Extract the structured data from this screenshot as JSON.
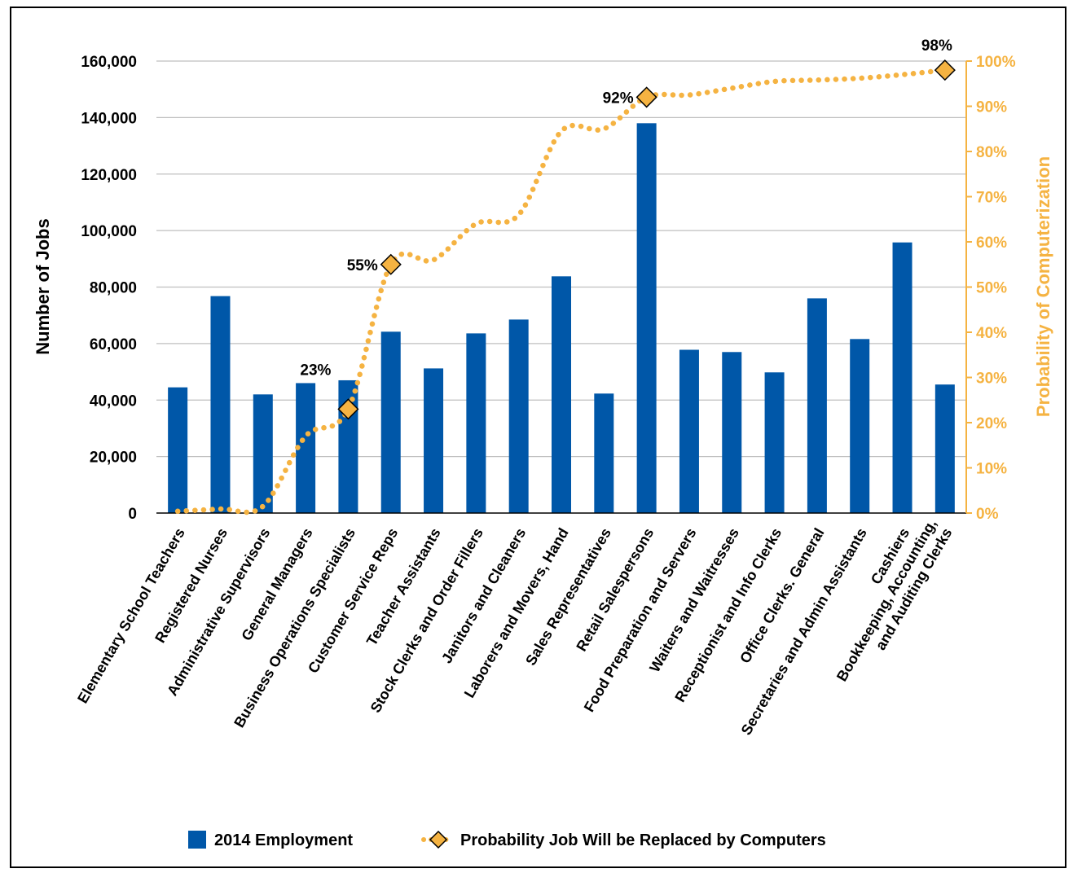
{
  "chart_data": {
    "type": "bar",
    "categories": [
      [
        "Elementary School Teachers"
      ],
      [
        "Registered Nurses"
      ],
      [
        "Administrative Supervisors"
      ],
      [
        "General Managers"
      ],
      [
        "Business Operations Specialists"
      ],
      [
        "Customer Service Reps"
      ],
      [
        "Teacher Assistants"
      ],
      [
        "Stock Clerks and Order Fillers"
      ],
      [
        "Janitors and Cleaners"
      ],
      [
        "Laborers and Movers, Hand"
      ],
      [
        "Sales Representatives"
      ],
      [
        "Retail Salespersons"
      ],
      [
        "Food Preparation and Servers"
      ],
      [
        "Waiters and Waitresses"
      ],
      [
        "Receptionist and Info Clerks"
      ],
      [
        "Office Clerks. General"
      ],
      [
        "Secretaries and Admin Assistants"
      ],
      [
        "Cashiers"
      ],
      [
        "Bookkeeping, Accounting,",
        "and Auditing Clerks"
      ]
    ],
    "series": [
      {
        "name": "2014 Employment",
        "kind": "bar",
        "axis": "left",
        "color": "#0057A8",
        "values": [
          44500,
          76800,
          42000,
          46000,
          47000,
          64200,
          51200,
          63600,
          68500,
          83800,
          42300,
          138000,
          57800,
          57000,
          49800,
          76000,
          61600,
          95800,
          45500
        ]
      },
      {
        "name": "Probability Job Will be Replaced by Computers",
        "kind": "line",
        "axis": "right",
        "color": "#F5B342",
        "values": [
          0.4,
          0.9,
          1.5,
          17,
          23,
          55,
          56,
          64,
          66,
          84.5,
          85,
          92,
          92.5,
          94,
          95.5,
          95.8,
          96.2,
          97,
          98
        ]
      }
    ],
    "annotations": [
      {
        "index": 4,
        "text": "23%"
      },
      {
        "index": 5,
        "text": "55%"
      },
      {
        "index": 11,
        "text": "92%"
      },
      {
        "index": 18,
        "text": "98%"
      }
    ],
    "y_left": {
      "label": "Number of Jobs",
      "range": [
        0,
        160000
      ],
      "ticks": [
        "0",
        "20,000",
        "40,000",
        "60,000",
        "80,000",
        "100,000",
        "120,000",
        "140,000",
        "160,000"
      ]
    },
    "y_right": {
      "label": "Probability of Computerization",
      "range": [
        0,
        100
      ],
      "ticks": [
        "0%",
        "10%",
        "20%",
        "30%",
        "40%",
        "50%",
        "60%",
        "70%",
        "80%",
        "90%",
        "100%"
      ]
    },
    "grid": true,
    "legend_position": "bottom"
  },
  "colors": {
    "bar": "#0057A8",
    "line": "#F5B342",
    "marker_fill": "#F5B342",
    "marker_stroke": "#000000",
    "right_axis": "#F5B342",
    "grid": "#BFBFBF"
  }
}
